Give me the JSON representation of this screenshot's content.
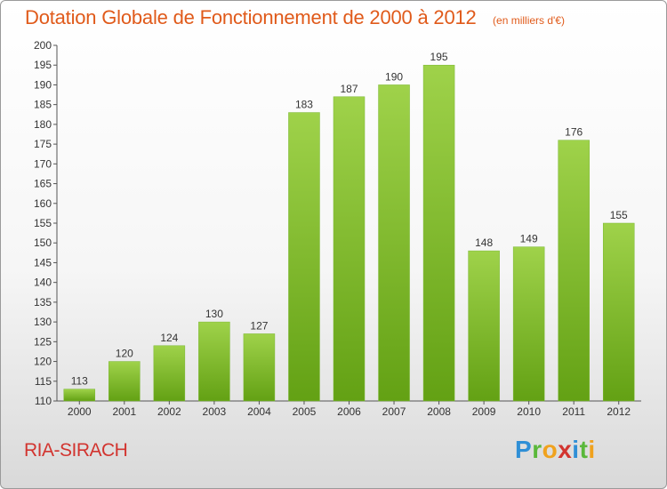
{
  "header": {
    "title": "Dotation Globale de Fonctionnement de 2000 à 2012",
    "unit": "(en milliers d'€)"
  },
  "footer": {
    "commune": "RIA-SIRACH",
    "logo_text": "Proxiti"
  },
  "colors": {
    "title": "#e05a1a",
    "commune": "#d2342f",
    "bar_light": "#9fd24a",
    "bar_dark": "#63a114"
  },
  "chart_data": {
    "type": "bar",
    "title": "Dotation Globale de Fonctionnement de 2000 à 2012",
    "subtitle": "(en milliers d'€)",
    "categories": [
      "2000",
      "2001",
      "2002",
      "2003",
      "2004",
      "2005",
      "2006",
      "2007",
      "2008",
      "2009",
      "2010",
      "2011",
      "2012"
    ],
    "values": [
      113,
      120,
      124,
      130,
      127,
      183,
      187,
      190,
      195,
      148,
      149,
      176,
      155
    ],
    "ylim": [
      110,
      200
    ],
    "yticks": [
      110,
      115,
      120,
      125,
      130,
      135,
      140,
      145,
      150,
      155,
      160,
      165,
      170,
      175,
      180,
      185,
      190,
      195,
      200
    ],
    "xlabel": "",
    "ylabel": "",
    "grid": false,
    "data_labels": true
  }
}
